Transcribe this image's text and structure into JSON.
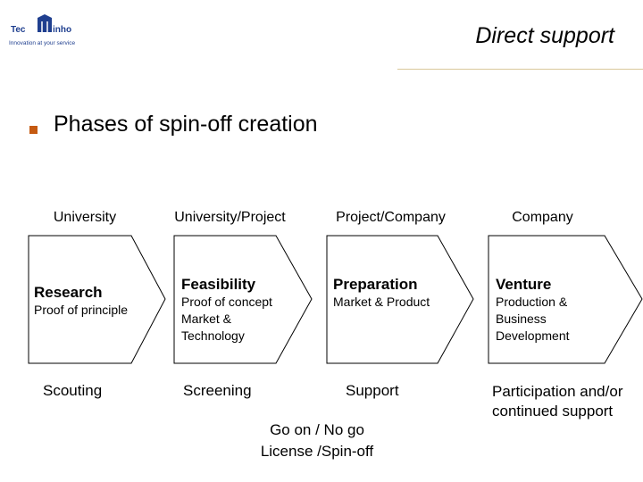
{
  "header": {
    "title": "Direct support",
    "logo_text": "TecMinho",
    "logo_tagline": "Innovation at your service"
  },
  "heading": "Phases of spin-off creation",
  "colors": {
    "accent": "#c55a11",
    "logo": "#1f3f8f",
    "rule": "#d9c89a"
  },
  "phases": [
    {
      "stage": "University",
      "name": "Research",
      "desc": [
        "Proof of principle"
      ],
      "activity": "Scouting"
    },
    {
      "stage": "University/Project",
      "name": "Feasibility",
      "desc": [
        "Proof of concept",
        "Market &",
        "Technology"
      ],
      "activity": "Screening"
    },
    {
      "stage": "Project/Company",
      "name": "Preparation",
      "desc": [
        "Market & Product"
      ],
      "activity": "Support"
    },
    {
      "stage": "Company",
      "name": "Venture",
      "desc": [
        "Production &",
        "Business",
        "Development"
      ],
      "activity": "Participation and/or continued support"
    }
  ],
  "decision": [
    "Go on / No go",
    "License /Spin-off"
  ]
}
